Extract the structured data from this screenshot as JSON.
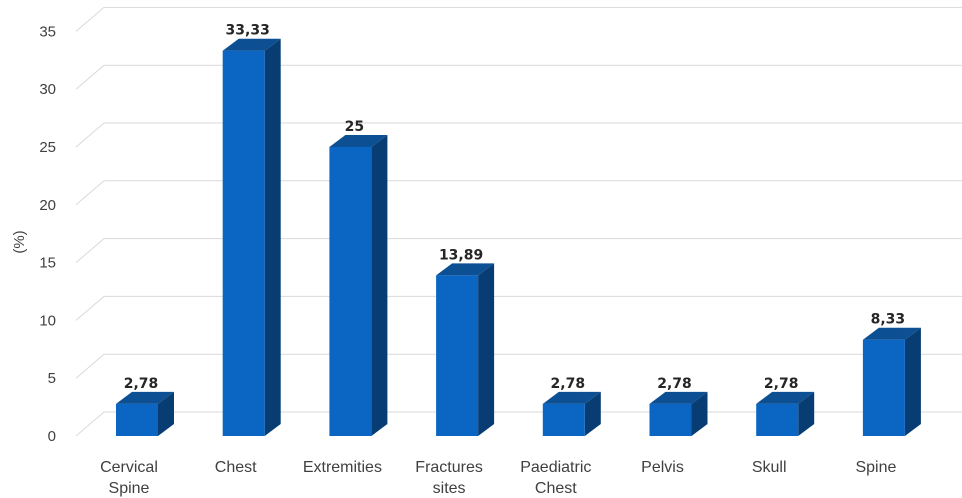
{
  "chart_data": {
    "type": "bar",
    "style": "3d-column",
    "categories": [
      [
        "Cervical",
        "Spine"
      ],
      [
        "Chest"
      ],
      [
        "Extremities"
      ],
      [
        "Fractures",
        "sites"
      ],
      [
        "Paediatric",
        "Chest"
      ],
      [
        "Pelvis"
      ],
      [
        "Skull"
      ],
      [
        "Spine"
      ]
    ],
    "values": [
      2.78,
      33.33,
      25,
      13.89,
      2.78,
      2.78,
      2.78,
      8.33
    ],
    "data_labels": [
      "2,78",
      "33,33",
      "25",
      "13,89",
      "2,78",
      "2,78",
      "2,78",
      "8,33"
    ],
    "ylabel": "(%)",
    "ylim": [
      0,
      35
    ],
    "yticks": [
      "0",
      "5",
      "10",
      "15",
      "20",
      "25",
      "30",
      "35"
    ],
    "grid": true,
    "legend": "none",
    "colors": {
      "bar_front": "#0b66c3",
      "bar_top": "#0c4f93",
      "bar_side": "#083d73",
      "grid": "#d9d9d9",
      "text": "#404040"
    }
  }
}
